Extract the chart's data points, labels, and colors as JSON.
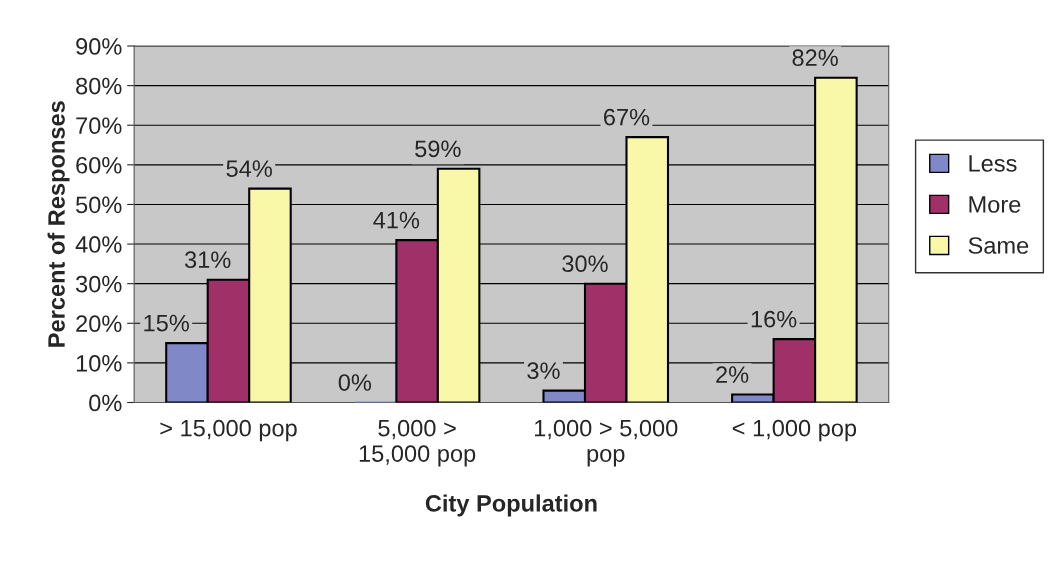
{
  "chart_data": {
    "type": "bar",
    "xlabel": "City Population",
    "ylabel": "Percent of Responses",
    "categories": [
      "> 15,000 pop",
      "5,000 >\n15,000 pop",
      "1,000 > 5,000\npop",
      "< 1,000 pop"
    ],
    "series": [
      {
        "name": "Less",
        "color": "#8088c8",
        "values": [
          15,
          0,
          3,
          2
        ],
        "value_labels": [
          "15%",
          "0%",
          "3%",
          "2%"
        ]
      },
      {
        "name": "More",
        "color": "#a03068",
        "values": [
          31,
          41,
          30,
          16
        ],
        "value_labels": [
          "31%",
          "41%",
          "30%",
          "16%"
        ]
      },
      {
        "name": "Same",
        "color": "#f8f8a8",
        "values": [
          54,
          59,
          67,
          82
        ],
        "value_labels": [
          "54%",
          "59%",
          "67%",
          "82%"
        ]
      }
    ],
    "ylim": [
      0,
      90
    ],
    "yticks": [
      {
        "value": 0,
        "label": "0%"
      },
      {
        "value": 10,
        "label": "10%"
      },
      {
        "value": 20,
        "label": "20%"
      },
      {
        "value": 30,
        "label": "30%"
      },
      {
        "value": 40,
        "label": "40%"
      },
      {
        "value": 50,
        "label": "50%"
      },
      {
        "value": 60,
        "label": "60%"
      },
      {
        "value": 70,
        "label": "70%"
      },
      {
        "value": 80,
        "label": "80%"
      },
      {
        "value": 90,
        "label": "90%"
      }
    ],
    "grid": "y",
    "legend": "right"
  }
}
